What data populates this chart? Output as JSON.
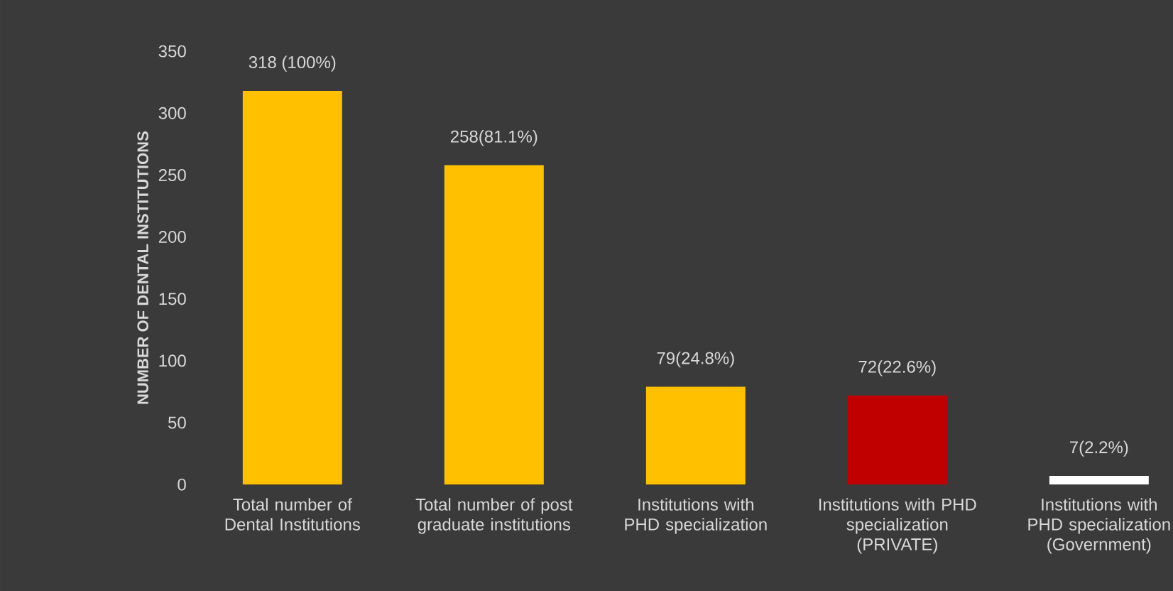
{
  "chart_data": {
    "type": "bar",
    "ylabel": "NUMBER OF DENTAL INSTITUTIONS",
    "categories": [
      "Total number of Dental Institutions",
      "Total number of post graduate institutions",
      "Institutions with PHD specialization",
      "Institutions with PHD specialization (PRIVATE)",
      "Institutions with PHD specialization (Government)"
    ],
    "values": [
      318,
      258,
      79,
      72,
      7
    ],
    "colors": [
      "#ffc000",
      "#ffc000",
      "#ffc000",
      "#c00000",
      "#ffffff"
    ],
    "value_labels": [
      "318 (100%)",
      "258(81.1%)",
      "79(24.8%)",
      "72(22.6%)",
      "7(2.2%)"
    ],
    "ylim": [
      0,
      350
    ],
    "yticks": [
      0,
      50,
      100,
      150,
      200,
      250,
      300,
      350
    ],
    "grid": false
  }
}
